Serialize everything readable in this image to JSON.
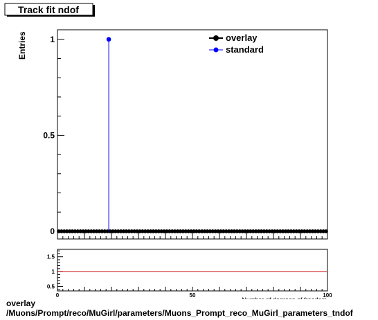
{
  "chart_data": {
    "type": "scatter",
    "title": "Track fit ndof",
    "ylabel": "Entries",
    "xlabel": "Number of degrees of freedom",
    "xlim": [
      0,
      100
    ],
    "ylim": [
      -0.04,
      1.05
    ],
    "y_ticks": [
      "0",
      "0.5",
      "1"
    ],
    "x_ticks": [
      "0",
      "50",
      "100"
    ],
    "legend_position": "top-right",
    "series": [
      {
        "name": "overlay",
        "color": "#000000",
        "x": [
          0.5,
          1.5,
          2.5,
          3.5,
          4.5,
          5.5,
          6.5,
          7.5,
          8.5,
          9.5,
          10.5,
          11.5,
          12.5,
          13.5,
          14.5,
          15.5,
          16.5,
          17.5,
          18.5,
          19.5,
          20.5,
          21.5,
          22.5,
          23.5,
          24.5,
          25.5,
          26.5,
          27.5,
          28.5,
          29.5,
          30.5,
          31.5,
          32.5,
          33.5,
          34.5,
          35.5,
          36.5,
          37.5,
          38.5,
          39.5,
          40.5,
          41.5,
          42.5,
          43.5,
          44.5,
          45.5,
          46.5,
          47.5,
          48.5,
          49.5,
          50.5,
          51.5,
          52.5,
          53.5,
          54.5,
          55.5,
          56.5,
          57.5,
          58.5,
          59.5,
          60.5,
          61.5,
          62.5,
          63.5,
          64.5,
          65.5,
          66.5,
          67.5,
          68.5,
          69.5,
          70.5,
          71.5,
          72.5,
          73.5,
          74.5,
          75.5,
          76.5,
          77.5,
          78.5,
          79.5,
          80.5,
          81.5,
          82.5,
          83.5,
          84.5,
          85.5,
          86.5,
          87.5,
          88.5,
          89.5,
          90.5,
          91.5,
          92.5,
          93.5,
          94.5,
          95.5,
          96.5,
          97.5,
          98.5,
          99.5
        ],
        "y": [
          0,
          0,
          0,
          0,
          0,
          0,
          0,
          0,
          0,
          0,
          0,
          0,
          0,
          0,
          0,
          0,
          0,
          0,
          0,
          0,
          0,
          0,
          0,
          0,
          0,
          0,
          0,
          0,
          0,
          0,
          0,
          0,
          0,
          0,
          0,
          0,
          0,
          0,
          0,
          0,
          0,
          0,
          0,
          0,
          0,
          0,
          0,
          0,
          0,
          0,
          0,
          0,
          0,
          0,
          0,
          0,
          0,
          0,
          0,
          0,
          0,
          0,
          0,
          0,
          0,
          0,
          0,
          0,
          0,
          0,
          0,
          0,
          0,
          0,
          0,
          0,
          0,
          0,
          0,
          0,
          0,
          0,
          0,
          0,
          0,
          0,
          0,
          0,
          0,
          0,
          0,
          0,
          0,
          0,
          0,
          0,
          0,
          0,
          0,
          0
        ]
      },
      {
        "name": "standard",
        "color": "#0000ff",
        "x": [
          19.0
        ],
        "y": [
          1.0
        ]
      }
    ],
    "ratio_panel": {
      "ylim": [
        0.35,
        1.75
      ],
      "y_ticks": [
        "0.5",
        "1",
        "1.5"
      ],
      "reference_value": 1.0,
      "reference_color": "#cc0000"
    }
  },
  "footer": {
    "line1": "overlay",
    "line2": "/Muons/Prompt/reco/MuGirl/parameters/Muons_Prompt_reco_MuGirl_parameters_tndof"
  }
}
